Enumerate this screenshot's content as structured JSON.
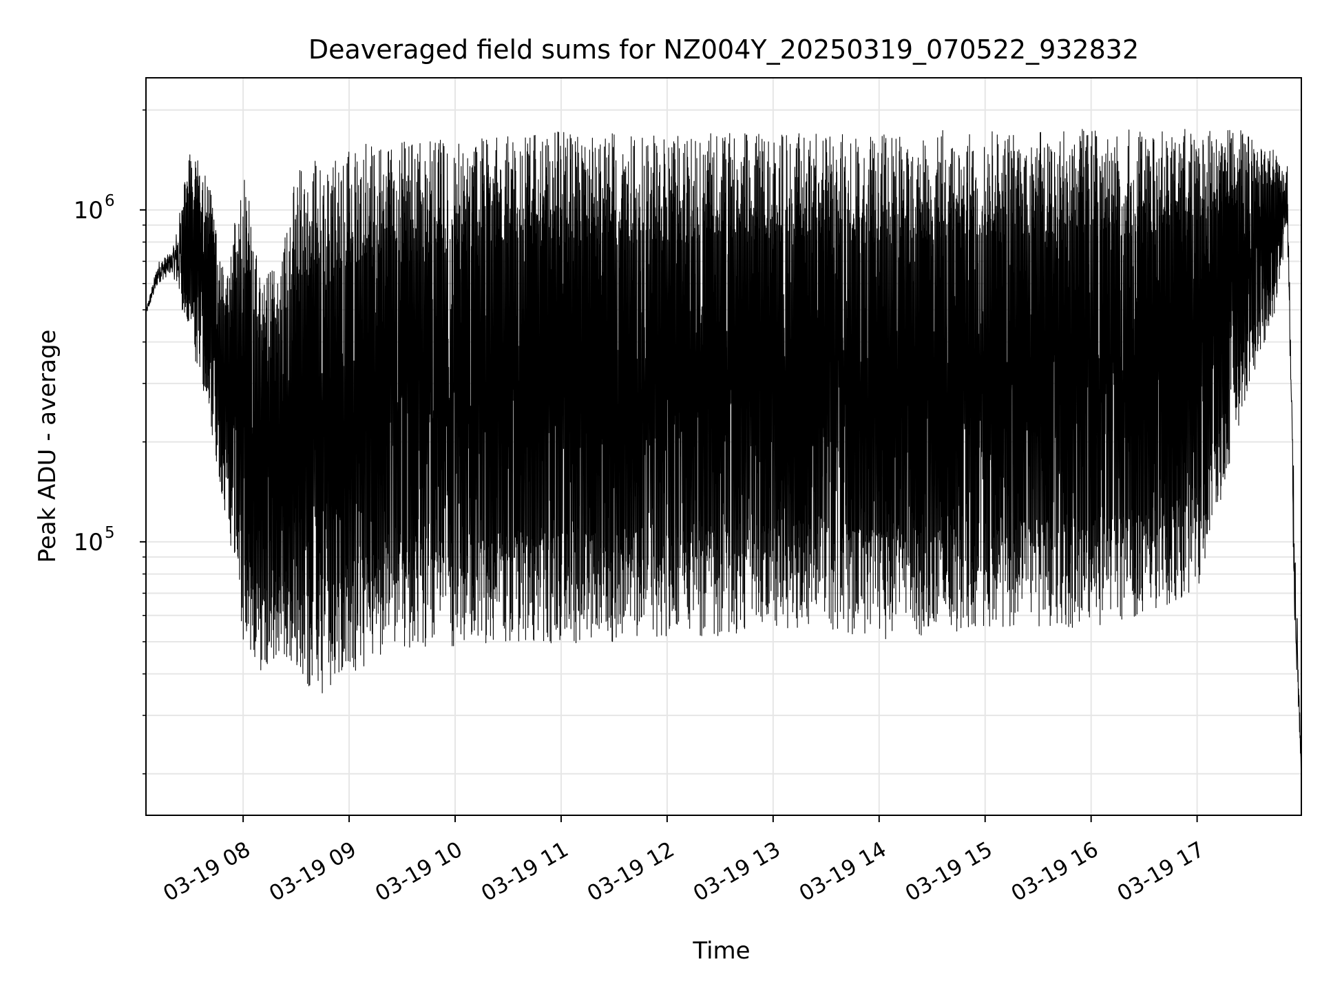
{
  "chart_data": {
    "type": "line",
    "title": "Deaveraged field sums for NZ004Y_20250319_070522_932832",
    "xlabel": "Time",
    "ylabel": "Peak ADU - average",
    "xlim": [
      "2025-03-19 07:05",
      "2025-03-19 17:59"
    ],
    "ylim": [
      15000,
      2500000
    ],
    "y_scale": "log",
    "grid": true,
    "legend": "none",
    "x_ticks": [
      "03-19 08",
      "03-19 09",
      "03-19 10",
      "03-19 11",
      "03-19 12",
      "03-19 13",
      "03-19 14",
      "03-19 15",
      "03-19 16",
      "03-19 17"
    ],
    "y_ticks": [
      {
        "value": 100000,
        "base": "10",
        "exp": "5"
      },
      {
        "value": 1000000,
        "base": "10",
        "exp": "6"
      }
    ],
    "line_color": "#000000",
    "grid_color": "#e6e6e6",
    "series": [
      {
        "x": [
          "2025-03-19 07:05",
          "2025-03-19 07:12",
          "2025-03-19 07:20",
          "2025-03-19 07:30",
          "2025-03-19 07:40",
          "2025-03-19 07:50",
          "2025-03-19 08:00",
          "2025-03-19 08:10",
          "2025-03-19 08:20",
          "2025-03-19 08:30",
          "2025-03-19 08:40",
          "2025-03-19 08:50",
          "2025-03-19 09:00",
          "2025-03-19 09:10",
          "2025-03-19 09:20",
          "2025-03-19 09:30",
          "2025-03-19 09:45",
          "2025-03-19 10:00",
          "2025-03-19 10:30",
          "2025-03-19 11:00",
          "2025-03-19 11:30",
          "2025-03-19 12:00",
          "2025-03-19 12:30",
          "2025-03-19 13:00",
          "2025-03-19 13:30",
          "2025-03-19 14:00",
          "2025-03-19 14:30",
          "2025-03-19 15:00",
          "2025-03-19 15:30",
          "2025-03-19 16:00",
          "2025-03-19 16:30",
          "2025-03-19 17:00",
          "2025-03-19 17:30",
          "2025-03-19 17:45",
          "2025-03-19 17:51",
          "2025-03-19 17:55",
          "2025-03-19 17:59"
        ],
        "upper": [
          500000,
          700000,
          750000,
          1500000,
          1300000,
          600000,
          1400000,
          700000,
          650000,
          1400000,
          1400000,
          1500000,
          1500000,
          1600000,
          1700000,
          1600000,
          1650000,
          1600000,
          1700000,
          1750000,
          1700000,
          1700000,
          1700000,
          1700000,
          1700000,
          1700000,
          1750000,
          1750000,
          1750000,
          1750000,
          1750000,
          1750000,
          1750000,
          1500000,
          1400000,
          130000,
          20000
        ],
        "lower": [
          480000,
          600000,
          650000,
          400000,
          250000,
          120000,
          50000,
          40000,
          45000,
          40000,
          35000,
          35000,
          40000,
          42000,
          45000,
          48000,
          48000,
          45000,
          50000,
          48000,
          50000,
          52000,
          52000,
          55000,
          55000,
          50000,
          52000,
          55000,
          55000,
          55000,
          60000,
          70000,
          300000,
          500000,
          900000,
          60000,
          18000
        ]
      }
    ]
  }
}
